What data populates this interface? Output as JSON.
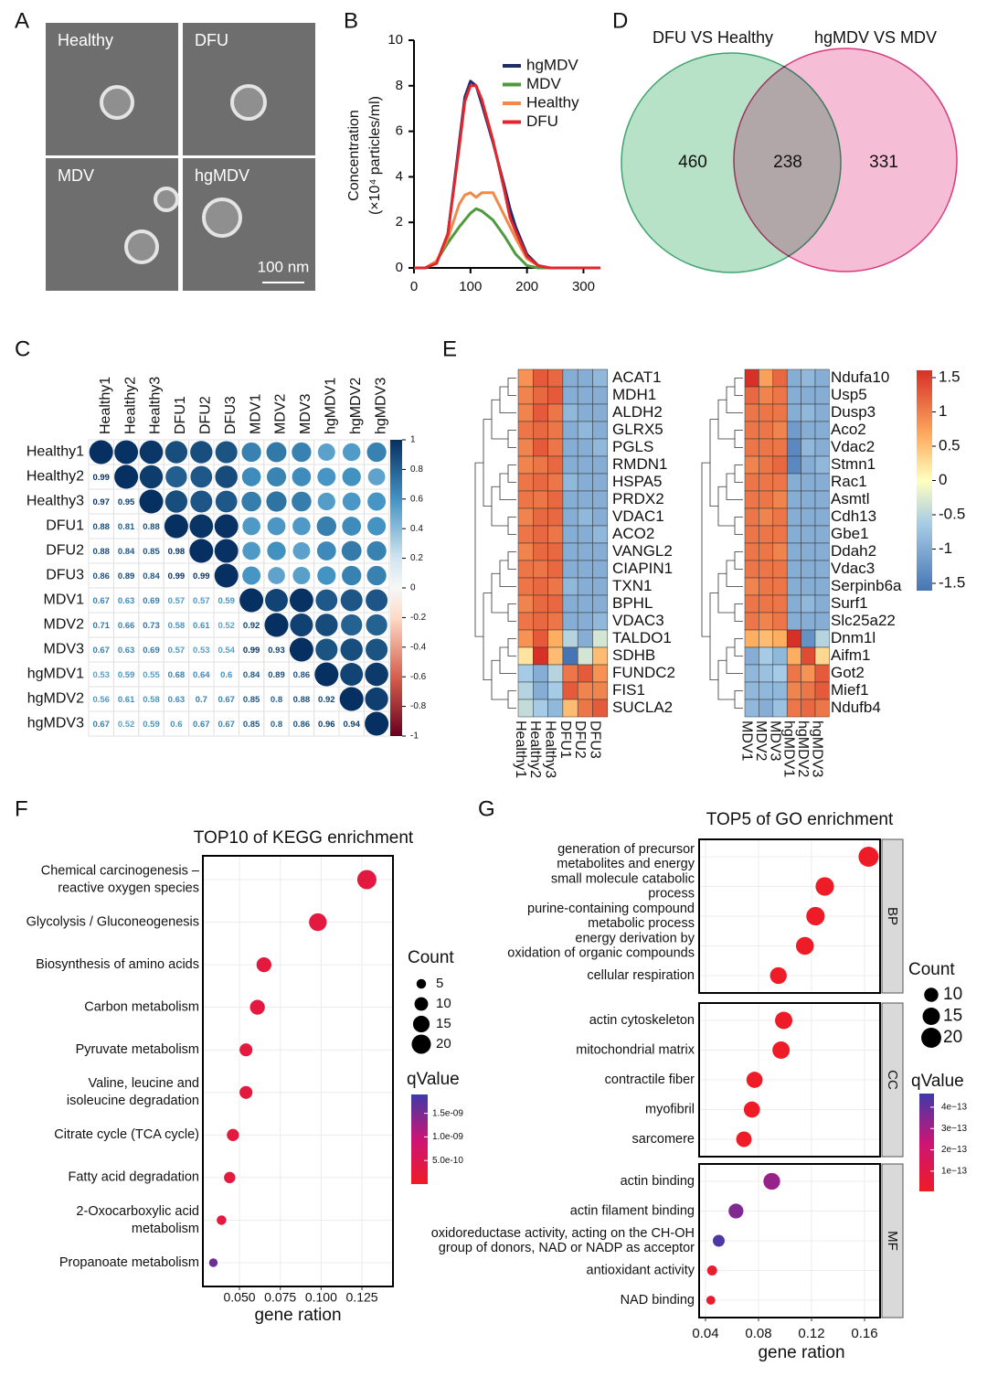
{
  "chart_data": [
    {
      "type": "image",
      "panel": "A",
      "labels": [
        "Healthy",
        "DFU",
        "MDV",
        "hgMDV"
      ],
      "scale_bar": "100 nm"
    },
    {
      "type": "line",
      "panel": "B",
      "ylabel": [
        "Concentration",
        "(×10⁴ particles/ml)"
      ],
      "x": [
        0,
        20,
        40,
        60,
        80,
        90,
        100,
        110,
        120,
        140,
        160,
        170,
        180,
        200,
        220,
        240,
        260,
        300,
        330
      ],
      "xlim": [
        0,
        330
      ],
      "ylim": [
        0,
        10
      ],
      "xticks": [
        0,
        100,
        200,
        300
      ],
      "yticks": [
        0,
        2,
        4,
        6,
        8,
        10
      ],
      "series": [
        {
          "name": "hgMDV",
          "color": "#1f2d6e",
          "values": [
            0,
            0,
            0.2,
            1.5,
            5.5,
            7.5,
            8.2,
            8.0,
            7.2,
            5.5,
            3.6,
            2.6,
            1.8,
            0.6,
            0.1,
            0,
            0,
            0,
            0
          ]
        },
        {
          "name": "MDV",
          "color": "#4e9a3c",
          "values": [
            0,
            0,
            0.3,
            1.1,
            1.8,
            2.1,
            2.4,
            2.6,
            2.5,
            2.1,
            1.4,
            1.0,
            0.6,
            0.1,
            0,
            0,
            0,
            0,
            0
          ]
        },
        {
          "name": "Healthy",
          "color": "#f08a4b",
          "values": [
            0,
            0,
            0.3,
            1.3,
            2.8,
            3.2,
            3.3,
            3.1,
            3.3,
            3.3,
            2.3,
            1.8,
            1.3,
            0.4,
            0.1,
            0,
            0,
            0,
            0
          ]
        },
        {
          "name": "DFU",
          "color": "#e2262b",
          "values": [
            0,
            0,
            0.2,
            1.5,
            5.3,
            7.3,
            8.0,
            8.0,
            7.4,
            5.6,
            3.4,
            2.2,
            1.6,
            0.5,
            0.1,
            0,
            0,
            0,
            0
          ]
        }
      ]
    },
    {
      "type": "corrplot",
      "panel": "C",
      "labels": [
        "Healthy1",
        "Healthy2",
        "Healthy3",
        "DFU1",
        "DFU2",
        "DFU3",
        "MDV1",
        "MDV2",
        "MDV3",
        "hgMDV1",
        "hgMDV2",
        "hgMDV3"
      ],
      "diagonal": 1,
      "values": [
        [
          0.99
        ],
        [
          0.97,
          0.95
        ],
        [
          0.88,
          0.81,
          0.88
        ],
        [
          0.88,
          0.84,
          0.85,
          0.98
        ],
        [
          0.86,
          0.89,
          0.84,
          0.99,
          0.99
        ],
        [
          0.67,
          0.63,
          0.69,
          0.57,
          0.57,
          0.59
        ],
        [
          0.71,
          0.66,
          0.73,
          0.58,
          0.61,
          0.52,
          0.92
        ],
        [
          0.67,
          0.63,
          0.69,
          0.57,
          0.53,
          0.54,
          0.99,
          0.93
        ],
        [
          0.53,
          0.59,
          0.55,
          0.68,
          0.64,
          0.6,
          0.84,
          0.89,
          0.86
        ],
        [
          0.56,
          0.61,
          0.58,
          0.63,
          0.7,
          0.67,
          0.85,
          0.8,
          0.88,
          0.92
        ],
        [
          0.67,
          0.52,
          0.59,
          0.6,
          0.67,
          0.67,
          0.85,
          0.8,
          0.86,
          0.96,
          0.94
        ]
      ],
      "clim": [
        -1,
        1
      ],
      "cticks": [
        1,
        0.8,
        0.6,
        0.4,
        0.2,
        0,
        -0.2,
        -0.4,
        -0.6,
        -0.8,
        -1
      ]
    },
    {
      "type": "venn",
      "panel": "D",
      "overlap": 238,
      "sets": [
        {
          "name": "DFU VS Healthy",
          "color": "#b8e2c8",
          "edge": "#3fa46f",
          "only": 460
        },
        {
          "name": "hgMDV VS MDV",
          "color": "#f6bdd7",
          "edge": "#d83a7e",
          "only": 331
        }
      ]
    },
    {
      "type": "heatmap",
      "panel": "E",
      "clim": [
        -1.5,
        1.5
      ],
      "cticks": [
        1.5,
        1,
        0.5,
        0,
        -0.5,
        -1,
        -1.5
      ],
      "heatmaps": [
        {
          "columns": [
            "Healthy1",
            "Healthy2",
            "Healthy3",
            "DFU1",
            "DFU2",
            "DFU3"
          ],
          "rows": [
            "ACAT1",
            "MDH1",
            "ALDH2",
            "GLRX5",
            "PGLS",
            "RMDN1",
            "HSPA5",
            "PRDX2",
            "VDAC1",
            "ACO2",
            "VANGL2",
            "CIAPIN1",
            "TXN1",
            "BPHL",
            "VDAC3",
            "TALDO1",
            "SDHB",
            "FUNDC2",
            "FIS1",
            "SUCLA2"
          ],
          "values": [
            [
              0.8,
              1.2,
              1.1,
              -0.9,
              -0.9,
              -0.8
            ],
            [
              0.9,
              1.1,
              1.2,
              -0.9,
              -0.9,
              -0.9
            ],
            [
              0.9,
              1.2,
              1.0,
              -0.8,
              -0.9,
              -0.9
            ],
            [
              1.0,
              1.1,
              1.0,
              -0.9,
              -0.8,
              -0.9
            ],
            [
              0.9,
              1.2,
              1.0,
              -0.9,
              -0.9,
              -0.8
            ],
            [
              0.9,
              1.0,
              1.1,
              -0.9,
              -0.9,
              -0.9
            ],
            [
              1.0,
              1.1,
              1.0,
              -0.8,
              -0.9,
              -0.9
            ],
            [
              1.0,
              1.0,
              1.1,
              -0.9,
              -0.9,
              -0.9
            ],
            [
              0.9,
              1.1,
              1.1,
              -0.9,
              -0.8,
              -0.9
            ],
            [
              1.0,
              1.1,
              1.0,
              -0.9,
              -0.9,
              -0.8
            ],
            [
              0.9,
              1.1,
              1.1,
              -0.9,
              -0.9,
              -0.9
            ],
            [
              1.0,
              1.0,
              1.1,
              -0.9,
              -0.9,
              -0.9
            ],
            [
              1.0,
              1.1,
              1.0,
              -0.8,
              -0.9,
              -0.9
            ],
            [
              0.9,
              1.1,
              1.1,
              -0.9,
              -0.9,
              -0.9
            ],
            [
              1.0,
              1.1,
              1.0,
              -0.9,
              -0.9,
              -0.8
            ],
            [
              0.8,
              1.2,
              0.6,
              -0.5,
              -0.9,
              -0.3
            ],
            [
              0.2,
              1.5,
              0.5,
              -1.5,
              -0.3,
              0.5
            ],
            [
              -0.6,
              -0.9,
              -0.5,
              1.0,
              1.2,
              0.8
            ],
            [
              -0.5,
              -0.9,
              -0.6,
              1.2,
              0.9,
              0.9
            ],
            [
              -0.4,
              -0.6,
              -0.8,
              0.5,
              1.0,
              1.2
            ]
          ]
        },
        {
          "columns": [
            "MDV1",
            "MDV2",
            "MDV3",
            "hgMDV1",
            "hgMDV2",
            "hgMDV3"
          ],
          "rows": [
            "Ndufa10",
            "Usp5",
            "Dusp3",
            "Aco2",
            "Vdac2",
            "Stmn1",
            "Rac1",
            "Asmtl",
            "Cdh13",
            "Gbe1",
            "Ddah2",
            "Vdac3",
            "Serpinb6a",
            "Surf1",
            "Slc25a22",
            "Dnm1l",
            "Aifm1",
            "Got2",
            "Mief1",
            "Ndufb4"
          ],
          "values": [
            [
              1.5,
              0.7,
              1.1,
              -0.9,
              -0.8,
              -0.9
            ],
            [
              1.1,
              0.9,
              1.0,
              -0.9,
              -0.9,
              -0.9
            ],
            [
              1.0,
              1.0,
              1.0,
              -0.9,
              -0.8,
              -0.9
            ],
            [
              1.0,
              1.0,
              0.9,
              -1.1,
              -0.9,
              -0.9
            ],
            [
              1.0,
              1.0,
              1.0,
              -1.3,
              -0.8,
              -0.9
            ],
            [
              0.9,
              1.0,
              1.1,
              -1.3,
              -0.9,
              -0.8
            ],
            [
              1.0,
              1.0,
              1.0,
              -0.9,
              -0.9,
              -0.9
            ],
            [
              1.0,
              1.0,
              0.9,
              -0.9,
              -0.9,
              -0.9
            ],
            [
              1.0,
              0.9,
              1.0,
              -0.9,
              -0.9,
              -0.9
            ],
            [
              1.0,
              1.0,
              1.0,
              -0.9,
              -0.9,
              -0.9
            ],
            [
              1.0,
              1.0,
              0.9,
              -0.9,
              -0.9,
              -0.9
            ],
            [
              1.0,
              1.0,
              1.0,
              -0.9,
              -0.9,
              -0.9
            ],
            [
              0.9,
              1.0,
              1.0,
              -0.9,
              -0.9,
              -0.9
            ],
            [
              1.0,
              1.0,
              1.0,
              -0.9,
              -0.8,
              -0.9
            ],
            [
              1.0,
              0.9,
              1.0,
              -0.9,
              -0.9,
              -0.9
            ],
            [
              0.6,
              0.5,
              0.6,
              1.5,
              -1.2,
              -0.5
            ],
            [
              -0.9,
              -0.6,
              -0.8,
              0.6,
              1.3,
              0.3
            ],
            [
              -0.8,
              -0.7,
              -0.6,
              1.0,
              0.8,
              1.2
            ],
            [
              -0.8,
              -0.8,
              -0.8,
              0.9,
              1.0,
              1.2
            ],
            [
              -0.8,
              -0.9,
              -0.7,
              1.0,
              1.1,
              1.0
            ]
          ]
        }
      ]
    },
    {
      "type": "dot",
      "panel": "F",
      "title": "TOP10 of KEGG enrichment",
      "xlabel": "gene ration",
      "categories": [
        [
          "Chemical carcinogenesis –",
          "reactive oxygen species"
        ],
        [
          "Glycolysis / Gluconeogenesis"
        ],
        [
          "Biosynthesis of amino acids"
        ],
        [
          "Carbon metabolism"
        ],
        [
          "Pyruvate metabolism"
        ],
        [
          "Valine, leucine and",
          "isoleucine degradation"
        ],
        [
          "Citrate cycle (TCA cycle)"
        ],
        [
          "Fatty acid degradation"
        ],
        [
          "2-Oxocarboxylic acid",
          "metabolism"
        ],
        [
          "Propanoate metabolism"
        ]
      ],
      "values": [
        0.128,
        0.098,
        0.065,
        0.061,
        0.054,
        0.054,
        0.046,
        0.044,
        0.039,
        0.034
      ],
      "count": [
        20,
        17,
        12,
        12,
        9,
        9,
        8,
        7,
        5,
        4
      ],
      "qvalue": [
        3e-10,
        3e-10,
        3e-10,
        3e-10,
        3e-10,
        3e-10,
        3e-10,
        3e-10,
        3e-10,
        1.6e-09
      ],
      "xlim": [
        0.0276,
        0.144
      ],
      "xticks": [
        {
          "value": 0.05,
          "label": "0.050"
        },
        {
          "value": 0.075,
          "label": "0.075"
        },
        {
          "value": 0.1,
          "label": "0.100"
        },
        {
          "value": 0.125,
          "label": "0.125"
        }
      ],
      "size_title": "Count",
      "size_legend": [
        5,
        10,
        15,
        20
      ],
      "color_title": "qValue",
      "qlim": [
        0,
        1.9e-09
      ],
      "qticks": [
        {
          "value": 1.5e-09,
          "label": "1.5e-09"
        },
        {
          "value": 1e-09,
          "label": "1.0e-09"
        },
        {
          "value": 5e-10,
          "label": "5.0e-10"
        }
      ]
    },
    {
      "type": "facet-dot",
      "panel": "G",
      "title": "TOP5 of GO enrichment",
      "xlabel": "gene ration",
      "facets": [
        {
          "name": "BP",
          "categories": [
            [
              "generation of precursor",
              "metabolites and energy"
            ],
            [
              "small molecule catabolic",
              "process"
            ],
            [
              "purine-containing compound",
              "metabolic process"
            ],
            [
              "energy derivation by",
              "oxidation of organic compounds"
            ],
            [
              "cellular respiration"
            ]
          ],
          "values": [
            0.163,
            0.13,
            0.123,
            0.115,
            0.095
          ],
          "count": [
            20,
            17,
            17,
            16,
            14
          ],
          "qvalue": [
            1e-14,
            1e-14,
            1e-14,
            1e-14,
            1e-14
          ]
        },
        {
          "name": "CC",
          "categories": [
            [
              "actin cytoskeleton"
            ],
            [
              "mitochondrial matrix"
            ],
            [
              "contractile fiber"
            ],
            [
              "myofibril"
            ],
            [
              "sarcomere"
            ]
          ],
          "values": [
            0.099,
            0.097,
            0.077,
            0.075,
            0.069
          ],
          "count": [
            15,
            15,
            13,
            13,
            12
          ],
          "qvalue": [
            1e-14,
            1e-14,
            1e-14,
            1e-14,
            1e-14
          ]
        },
        {
          "name": "MF",
          "categories": [
            [
              "actin binding"
            ],
            [
              "actin filament binding"
            ],
            [
              "oxidoreductase activity, acting on the CH-OH",
              "group of donors, NAD or NADP as acceptor"
            ],
            [
              "antioxidant activity"
            ],
            [
              "NAD binding"
            ]
          ],
          "values": [
            0.09,
            0.063,
            0.05,
            0.045,
            0.044
          ],
          "count": [
            14,
            11,
            7,
            5,
            4
          ],
          "qvalue": [
            3.2e-13,
            3.6e-13,
            4.4e-13,
            3e-14,
            3e-14
          ]
        }
      ],
      "xlim": [
        0.0352,
        0.1717
      ],
      "xticks": [
        0.04,
        0.08,
        0.12,
        0.16
      ],
      "size_title": "Count",
      "size_legend": [
        10,
        15,
        20
      ],
      "color_title": "qValue",
      "qlim": [
        5e-15,
        4.64e-13
      ],
      "qticks": [
        {
          "value": 4e-13,
          "label": "4e−13"
        },
        {
          "value": 3e-13,
          "label": "3e−13"
        },
        {
          "value": 2e-13,
          "label": "2e−13"
        },
        {
          "value": 1e-13,
          "label": "1e−13"
        }
      ]
    }
  ]
}
